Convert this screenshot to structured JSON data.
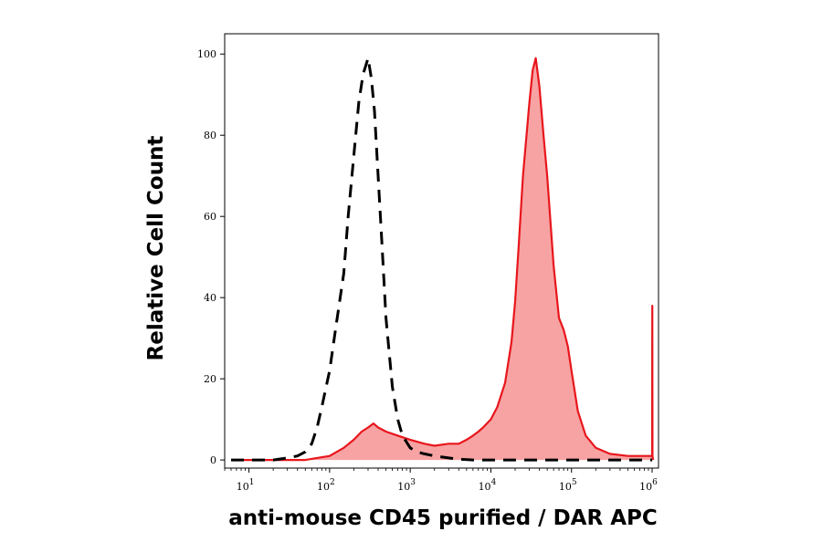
{
  "chart_data": {
    "type": "area",
    "title": "",
    "xlabel": "anti-mouse CD45 purified / DAR APC",
    "ylabel": "Relative Cell Count",
    "x_scale": "log",
    "xlim": [
      5,
      1200000
    ],
    "ylim": [
      -2,
      105
    ],
    "x_ticks": [
      {
        "value": 10,
        "base": "10",
        "exp": "1"
      },
      {
        "value": 100,
        "base": "10",
        "exp": "2"
      },
      {
        "value": 1000,
        "base": "10",
        "exp": "3"
      },
      {
        "value": 10000,
        "base": "10",
        "exp": "4"
      },
      {
        "value": 100000,
        "base": "10",
        "exp": "5"
      },
      {
        "value": 1000000,
        "base": "10",
        "exp": "6"
      }
    ],
    "y_ticks": [
      0,
      20,
      40,
      60,
      80,
      100
    ],
    "grid": false,
    "legend": "none",
    "series": [
      {
        "style": "dashed",
        "color": "#000000",
        "fill": "none",
        "x": [
          6,
          10,
          20,
          30,
          40,
          50,
          60,
          70,
          80,
          100,
          120,
          150,
          170,
          200,
          230,
          260,
          300,
          330,
          360,
          400,
          450,
          500,
          600,
          700,
          800,
          1000,
          1200,
          1500,
          2000,
          3000,
          4000,
          6000,
          10000,
          30000,
          100000,
          1000000
        ],
        "y": [
          0,
          0,
          0,
          0.5,
          1,
          2,
          4,
          8,
          13,
          22,
          33,
          46,
          60,
          75,
          88,
          95,
          99,
          94,
          86,
          70,
          52,
          35,
          18,
          10,
          6,
          3,
          2,
          1.5,
          1,
          0.5,
          0.2,
          0,
          0,
          0,
          0,
          0
        ]
      },
      {
        "style": "solid-filled",
        "color": "#e8161c",
        "fill": "#f7a3a3",
        "x": [
          6,
          50,
          100,
          150,
          200,
          250,
          300,
          350,
          400,
          500,
          700,
          1000,
          1500,
          2000,
          3000,
          4000,
          5000,
          6000,
          7000,
          8000,
          10000,
          12000,
          15000,
          18000,
          20000,
          22000,
          25000,
          30000,
          33000,
          36000,
          40000,
          45000,
          50000,
          60000,
          70000,
          80000,
          90000,
          100000,
          120000,
          150000,
          200000,
          300000,
          500000,
          700000,
          900000,
          1000000,
          1005000,
          1010000,
          1030000
        ],
        "y": [
          0,
          0,
          1,
          3,
          5,
          7,
          8,
          9,
          8,
          7,
          6,
          5,
          4,
          3.5,
          4,
          4,
          5,
          6,
          7,
          8,
          10,
          13,
          19,
          29,
          39,
          52,
          70,
          88,
          96,
          99,
          92,
          80,
          70,
          48,
          35,
          32,
          28,
          22,
          12,
          6,
          3,
          1.5,
          1,
          1,
          1,
          1,
          38,
          1,
          0
        ]
      }
    ]
  }
}
